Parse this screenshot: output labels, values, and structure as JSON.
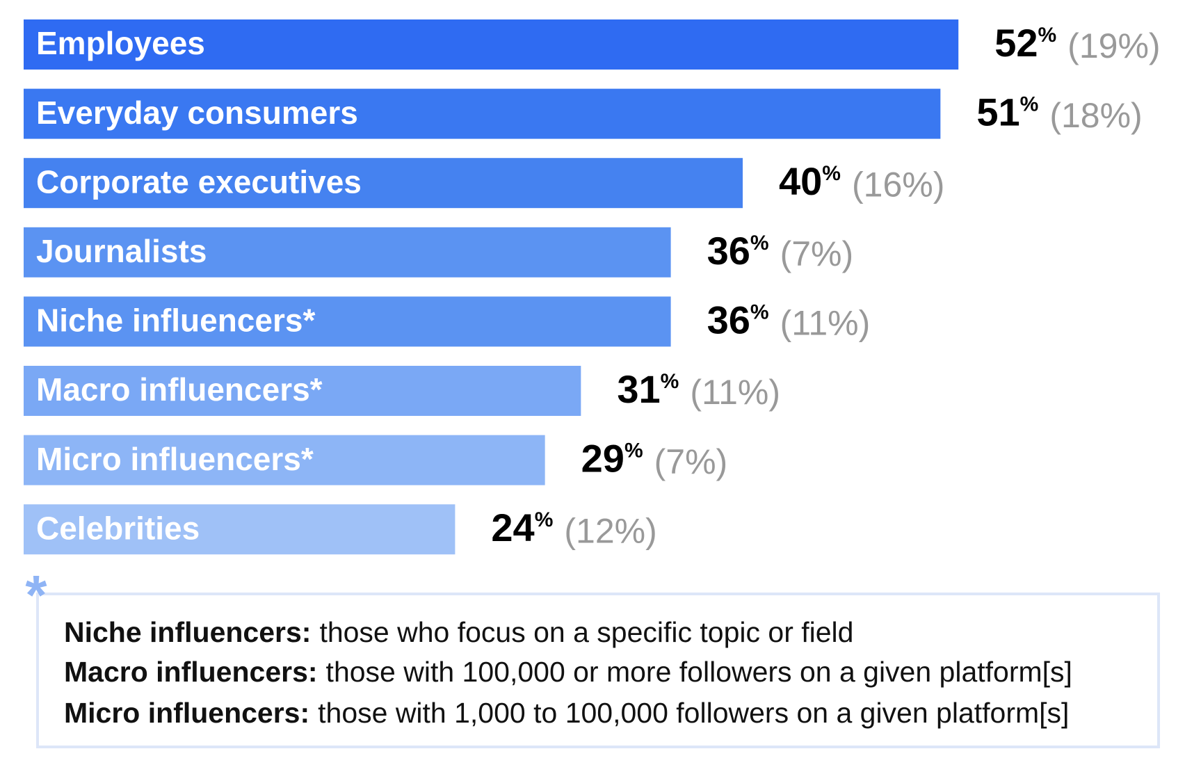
{
  "chart_data": {
    "type": "bar",
    "orientation": "horizontal",
    "categories": [
      "Employees",
      "Everyday consumers",
      "Corporate executives",
      "Journalists",
      "Niche influencers*",
      "Macro influencers*",
      "Micro influencers*",
      "Celebrities"
    ],
    "values": [
      52,
      51,
      40,
      36,
      36,
      31,
      29,
      24
    ],
    "value_labels": [
      "52%",
      "51%",
      "40%",
      "36%",
      "36%",
      "31%",
      "29%",
      "24%"
    ],
    "secondary_values": [
      19,
      18,
      16,
      7,
      11,
      11,
      7,
      12
    ],
    "secondary_value_labels": [
      "(19%)",
      "(18%)",
      "(16%)",
      "(7%)",
      "(11%)",
      "(11%)",
      "(7%)",
      "(12%)"
    ],
    "colors": [
      "#2f6bf2",
      "#3a78f1",
      "#4582f0",
      "#5b93f2",
      "#5b93f2",
      "#7aa8f5",
      "#8db5f6",
      "#9fc1f7"
    ]
  },
  "footnote": {
    "marker": "*",
    "lines": [
      {
        "term": "Niche influencers:",
        "text": "those who focus on a specific topic or field"
      },
      {
        "term": "Macro influencers:",
        "text": "those with 100,000 or more followers on a given platform[s]"
      },
      {
        "term": "Micro influencers:",
        "text": "those with 1,000 to 100,000 followers on a given platform[s]"
      }
    ]
  }
}
